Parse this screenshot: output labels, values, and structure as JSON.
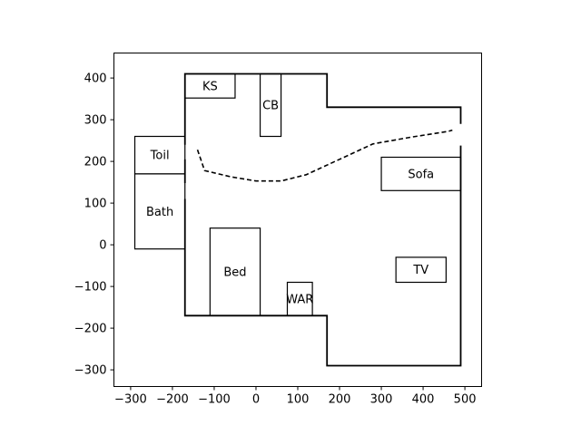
{
  "chart_data": {
    "type": "floor_plan",
    "xlim": [
      -340,
      540
    ],
    "ylim": [
      -340,
      460
    ],
    "x_ticks": [
      -300,
      -200,
      -100,
      0,
      100,
      200,
      300,
      400,
      500
    ],
    "y_ticks": [
      -300,
      -200,
      -100,
      0,
      100,
      200,
      300,
      400
    ],
    "x_tick_labels": [
      "−300",
      "−200",
      "−100",
      "0",
      "100",
      "200",
      "300",
      "400",
      "500"
    ],
    "y_tick_labels": [
      "−300",
      "−200",
      "−100",
      "0",
      "100",
      "200",
      "300",
      "400"
    ],
    "grid": false,
    "walls": [
      {
        "name": "wall-upper-left",
        "points": [
          [
            -170,
            240
          ],
          [
            -170,
            410
          ],
          [
            170,
            410
          ],
          [
            170,
            330
          ],
          [
            490,
            330
          ],
          [
            490,
            290
          ]
        ]
      },
      {
        "name": "wall-lower",
        "points": [
          [
            -170,
            110
          ],
          [
            -170,
            -170
          ],
          [
            170,
            -170
          ],
          [
            170,
            -290
          ],
          [
            490,
            -290
          ],
          [
            490,
            238
          ]
        ]
      },
      {
        "name": "wall-middle-left",
        "points": [
          [
            -170,
            148
          ],
          [
            -170,
            205
          ]
        ]
      }
    ],
    "rooms": [
      {
        "label": "KS",
        "x0": -170,
        "y0": 352,
        "x1": -50,
        "y1": 410
      },
      {
        "label": "CB",
        "x0": 10,
        "y0": 260,
        "x1": 60,
        "y1": 410
      },
      {
        "label": "Toil",
        "x0": -290,
        "y0": 170,
        "x1": -170,
        "y1": 260
      },
      {
        "label": "Bath",
        "x0": -290,
        "y0": -10,
        "x1": -170,
        "y1": 170
      },
      {
        "label": "Sofa",
        "x0": 300,
        "y0": 130,
        "x1": 490,
        "y1": 210
      },
      {
        "label": "Bed",
        "x0": -110,
        "y0": -170,
        "x1": 10,
        "y1": 40
      },
      {
        "label": "WAR",
        "x0": 75,
        "y0": -170,
        "x1": 135,
        "y1": -90
      },
      {
        "label": "TV",
        "x0": 335,
        "y0": -90,
        "x1": 455,
        "y1": -30
      }
    ],
    "path": {
      "style": "dashed",
      "points": [
        [
          -140,
          228
        ],
        [
          -123,
          178
        ],
        [
          -60,
          163
        ],
        [
          0,
          153
        ],
        [
          60,
          153
        ],
        [
          120,
          168
        ],
        [
          200,
          205
        ],
        [
          280,
          242
        ],
        [
          370,
          258
        ],
        [
          460,
          272
        ],
        [
          470,
          275
        ]
      ]
    }
  }
}
